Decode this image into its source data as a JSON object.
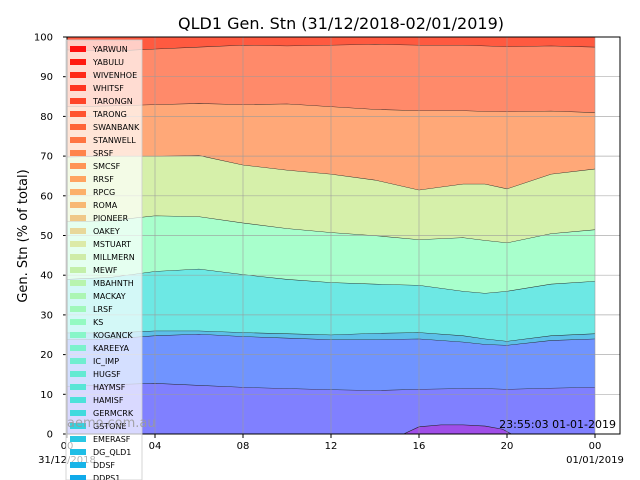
{
  "chart_data": {
    "type": "area",
    "title": "QLD1 Gen. Stn (31/12/2018-02/01/2019)",
    "ylabel": "Gen. Stn (% of total)",
    "xlabel": "",
    "ylim": [
      0,
      100
    ],
    "yticks": [
      "0",
      "10",
      "20",
      "30",
      "40",
      "50",
      "60",
      "70",
      "80",
      "90",
      "100"
    ],
    "xticks": [
      {
        "label": "04",
        "sublabel": ""
      },
      {
        "label": "08",
        "sublabel": ""
      },
      {
        "label": "12",
        "sublabel": ""
      },
      {
        "label": "16",
        "sublabel": ""
      },
      {
        "label": "20",
        "sublabel": ""
      },
      {
        "label": "00",
        "sublabel": "01/01/2019"
      }
    ],
    "first_tick": {
      "label": "00",
      "sublabel": "31/12/2018"
    },
    "x_hours": [
      0,
      2,
      4,
      6,
      8,
      10,
      12,
      14,
      16,
      18,
      19,
      20,
      22,
      24
    ],
    "grid": true,
    "legend_position": "upper-left",
    "watermark": "aemo.com.au",
    "timestamp": "23:55:03 01-01-2019",
    "bands": [
      {
        "name": "lower-stations",
        "color": "#8080ff",
        "top": [
          12.0,
          12.5,
          12.8,
          12.3,
          11.8,
          11.5,
          11.2,
          11.0,
          11.3,
          11.5,
          11.5,
          11.3,
          11.6,
          11.8
        ]
      },
      {
        "name": "mid-stations",
        "color": "#7094ff",
        "top": [
          23.8,
          24.0,
          24.8,
          25.2,
          24.6,
          24.2,
          23.8,
          23.8,
          24.0,
          23.2,
          22.6,
          22.4,
          23.6,
          24.0
        ]
      },
      {
        "name": "gas-stations",
        "color": "#5cc0e8",
        "top": [
          25.5,
          25.5,
          26.0,
          26.0,
          25.6,
          25.3,
          25.0,
          25.4,
          25.6,
          24.8,
          24.0,
          23.4,
          24.8,
          25.3
        ]
      },
      {
        "name": "hydro-stations",
        "color": "#6de8e4",
        "top": [
          39.0,
          39.5,
          41.0,
          41.6,
          40.2,
          39.0,
          38.2,
          37.8,
          37.5,
          36.0,
          35.5,
          36.0,
          37.8,
          38.5
        ]
      },
      {
        "name": "solar-stations",
        "color": "#a8ffcc",
        "top": [
          53.5,
          53.8,
          55.0,
          54.8,
          53.2,
          51.8,
          50.8,
          50.0,
          49.0,
          49.5,
          48.8,
          48.2,
          50.5,
          51.5
        ]
      },
      {
        "name": "wind-stations",
        "color": "#d6f0aa",
        "top": [
          69.8,
          70.0,
          70.0,
          70.2,
          67.8,
          66.5,
          65.5,
          64.0,
          61.5,
          63.0,
          63.0,
          61.8,
          65.5,
          66.8
        ]
      },
      {
        "name": "coal-stations-a",
        "color": "#ffa878",
        "top": [
          82.5,
          82.7,
          83.0,
          83.3,
          83.0,
          83.2,
          82.5,
          81.8,
          81.5,
          81.5,
          81.3,
          81.2,
          81.4,
          81.0
        ]
      },
      {
        "name": "coal-stations-b",
        "color": "#ff8a6a",
        "top": [
          96.8,
          96.5,
          97.0,
          97.5,
          98.0,
          97.8,
          98.0,
          98.2,
          98.0,
          98.0,
          97.8,
          97.6,
          97.8,
          97.5
        ]
      },
      {
        "name": "coal-stations-c",
        "color": "#ff5a40",
        "top": [
          100,
          100,
          100,
          100,
          100,
          100,
          100,
          100,
          100,
          100,
          100,
          100,
          100,
          100
        ]
      }
    ],
    "small_band": {
      "name": "purple-band",
      "color": "#a04ee8",
      "x_hours": [
        15.3,
        16,
        17,
        18,
        19,
        19.8,
        20.2
      ],
      "top": [
        0,
        1.8,
        2.3,
        2.3,
        2.0,
        1.2,
        0
      ]
    },
    "legend": [
      {
        "label": "YARWUN",
        "color": "#ff1010"
      },
      {
        "label": "YABULU",
        "color": "#ff1a10"
      },
      {
        "label": "WIVENHOE",
        "color": "#ff2a18"
      },
      {
        "label": "WHITSF",
        "color": "#ff3420"
      },
      {
        "label": "TARONGN",
        "color": "#ff4428"
      },
      {
        "label": "TARONG",
        "color": "#ff5430"
      },
      {
        "label": "SWANBANK",
        "color": "#ff6438"
      },
      {
        "label": "STANWELL",
        "color": "#ff7442"
      },
      {
        "label": "SRSF",
        "color": "#ff844c"
      },
      {
        "label": "SMCSF",
        "color": "#ff9456"
      },
      {
        "label": "RRSF",
        "color": "#ffa460"
      },
      {
        "label": "RPCG",
        "color": "#fcb06a"
      },
      {
        "label": "ROMA",
        "color": "#f8b874"
      },
      {
        "label": "PIONEER",
        "color": "#f0c888"
      },
      {
        "label": "OAKEY",
        "color": "#e8d89a"
      },
      {
        "label": "MSTUART",
        "color": "#dceaa8"
      },
      {
        "label": "MILLMERN",
        "color": "#cfeca8"
      },
      {
        "label": "MEWF",
        "color": "#c4f0aa"
      },
      {
        "label": "MBAHNTH",
        "color": "#b8f4ae"
      },
      {
        "label": "MACKAY",
        "color": "#acf6b4"
      },
      {
        "label": "LRSF",
        "color": "#a0f8ba"
      },
      {
        "label": "KS",
        "color": "#94fac2"
      },
      {
        "label": "KOGANCK",
        "color": "#88f6c8"
      },
      {
        "label": "KAREEYA",
        "color": "#7cf2cc"
      },
      {
        "label": "IC_IMP",
        "color": "#70eed0"
      },
      {
        "label": "HUGSF",
        "color": "#64ead2"
      },
      {
        "label": "HAYMSF",
        "color": "#58e6d6"
      },
      {
        "label": "HAMISF",
        "color": "#4ce2da"
      },
      {
        "label": "GERMCRK",
        "color": "#40dade"
      },
      {
        "label": "GSTONE",
        "color": "#34d2e0"
      },
      {
        "label": "EMERASF",
        "color": "#2ac8e4"
      },
      {
        "label": "DG_QLD1",
        "color": "#20bee6"
      },
      {
        "label": "DDSF",
        "color": "#18b4e8"
      },
      {
        "label": "DDPS1",
        "color": "#10aaea"
      }
    ]
  }
}
